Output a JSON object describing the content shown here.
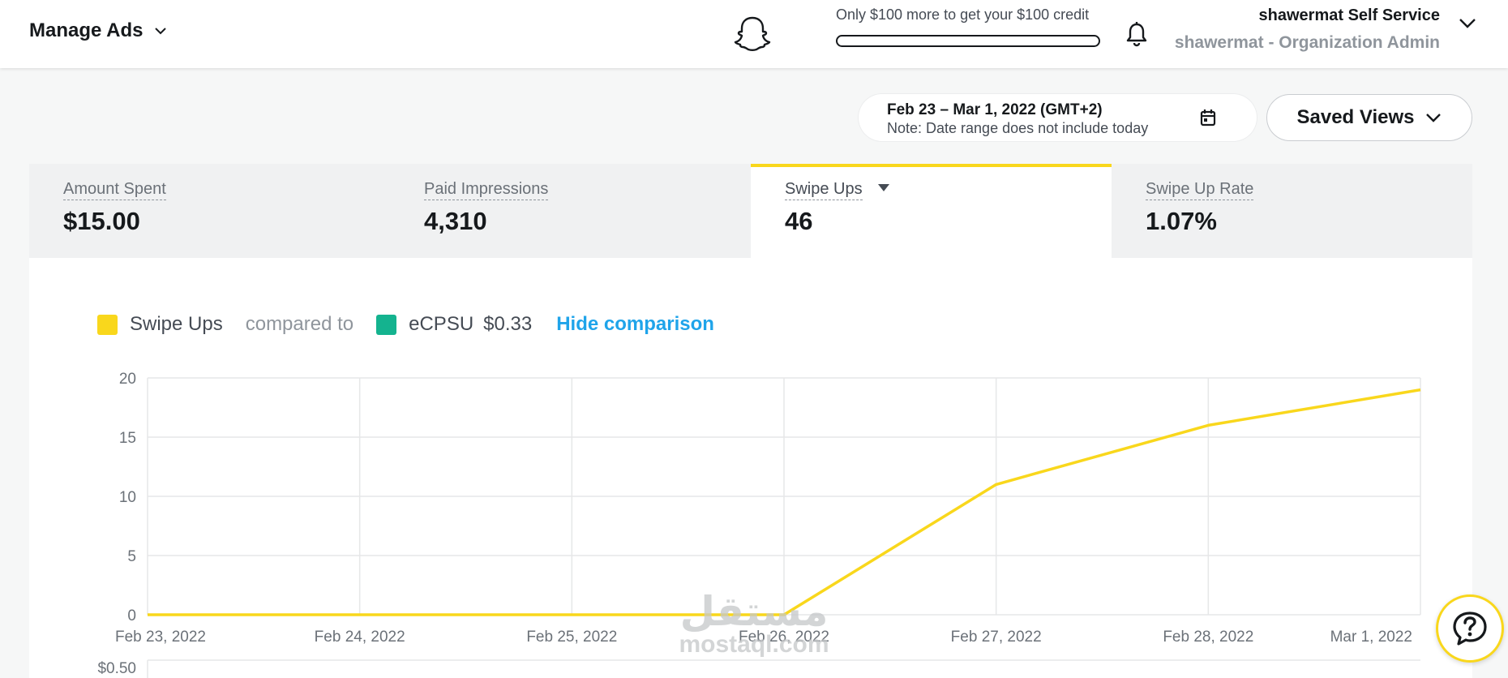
{
  "header": {
    "menu_label": "Manage Ads",
    "logo_icon": "snapchat-ghost-icon",
    "credit_text": "Only $100 more to get your $100 credit",
    "credit_progress": 0,
    "account_name": "shawermat Self Service",
    "account_role": "shawermat - Organization Admin"
  },
  "toolbar": {
    "date_range": "Feb 23 – Mar 1, 2022 (GMT+2)",
    "date_note": "Note: Date range does not include today",
    "saved_views_label": "Saved Views"
  },
  "metrics": [
    {
      "label": "Amount Spent",
      "value": "$15.00",
      "active": false
    },
    {
      "label": "Paid Impressions",
      "value": "4,310",
      "active": false
    },
    {
      "label": "Swipe Ups",
      "value": "46",
      "active": true
    },
    {
      "label": "Swipe Up Rate",
      "value": "1.07%",
      "active": false
    }
  ],
  "legend": {
    "primary_label": "Swipe Ups",
    "compared_to": "compared to",
    "secondary_label": "eCPSU",
    "secondary_value": "$0.33",
    "hide_label": "Hide comparison"
  },
  "colors": {
    "accent_yellow": "#f9d71c",
    "secondary_teal": "#14b38f",
    "link_blue": "#1fa4ea"
  },
  "chart_data": {
    "type": "line",
    "categories": [
      "Feb 23, 2022",
      "Feb 24, 2022",
      "Feb 25, 2022",
      "Feb 26, 2022",
      "Feb 27, 2022",
      "Feb 28, 2022",
      "Mar 1, 2022"
    ],
    "series": [
      {
        "name": "Swipe Ups",
        "values": [
          0,
          0,
          0,
          0,
          11,
          16,
          19
        ]
      }
    ],
    "yticks": [
      0,
      5,
      10,
      15,
      20
    ],
    "ylim": [
      0,
      20
    ],
    "grid": true,
    "secondary_axis_tick_partial": "$0.50"
  },
  "watermark": {
    "arabic": "مستقل",
    "latin": "mostaql.com"
  }
}
